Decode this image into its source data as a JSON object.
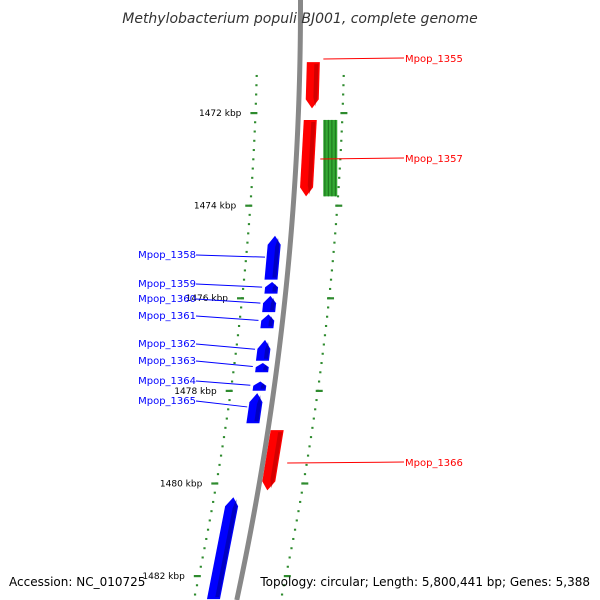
{
  "title": "Methylobacterium populi BJ001, complete genome",
  "accession": "Accession: NC_010725",
  "summary": "Topology: circular; Length: 5,800,441 bp; Genes: 5,388",
  "colors": {
    "backbone": "#888888",
    "dots": "#2e8b2e",
    "forward_gene": "#ff0000",
    "reverse_gene": "#0000ff",
    "other_feature": "#33aa33"
  },
  "kbp_ticks": [
    {
      "label": "1472 kbp",
      "kbp": 1472
    },
    {
      "label": "1474 kbp",
      "kbp": 1474
    },
    {
      "label": "1476 kbp",
      "kbp": 1476
    },
    {
      "label": "1478 kbp",
      "kbp": 1478
    },
    {
      "label": "1480 kbp",
      "kbp": 1480
    },
    {
      "label": "1482 kbp",
      "kbp": 1482
    }
  ],
  "genes": [
    {
      "id": "Mpop_1355",
      "strand": "+",
      "start_kbp": 1470.9,
      "end_kbp": 1471.9,
      "labeled": true
    },
    {
      "id": "Mpop_1357",
      "strand": "+",
      "start_kbp": 1472.15,
      "end_kbp": 1473.8,
      "labeled": true
    },
    {
      "id": "Mpop_1358",
      "strand": "-",
      "start_kbp": 1474.65,
      "end_kbp": 1475.6,
      "labeled": true
    },
    {
      "id": "Mpop_1359",
      "strand": "-",
      "start_kbp": 1475.65,
      "end_kbp": 1475.9,
      "labeled": true
    },
    {
      "id": "Mpop_1360",
      "strand": "-",
      "start_kbp": 1475.95,
      "end_kbp": 1476.3,
      "labeled": true
    },
    {
      "id": "Mpop_1361",
      "strand": "-",
      "start_kbp": 1476.35,
      "end_kbp": 1476.65,
      "labeled": true
    },
    {
      "id": "Mpop_1362",
      "strand": "-",
      "start_kbp": 1476.9,
      "end_kbp": 1477.35,
      "labeled": true
    },
    {
      "id": "Mpop_1363",
      "strand": "-",
      "start_kbp": 1477.4,
      "end_kbp": 1477.6,
      "labeled": true
    },
    {
      "id": "Mpop_1364",
      "strand": "-",
      "start_kbp": 1477.8,
      "end_kbp": 1478.0,
      "labeled": true
    },
    {
      "id": "Mpop_1365",
      "strand": "-",
      "start_kbp": 1478.05,
      "end_kbp": 1478.7,
      "labeled": true
    },
    {
      "id": "Mpop_1366",
      "strand": "+",
      "start_kbp": 1478.85,
      "end_kbp": 1480.15,
      "labeled": true
    },
    {
      "id": "",
      "strand": "-",
      "start_kbp": 1480.3,
      "end_kbp": 1482.5,
      "labeled": false
    }
  ],
  "other_features": [
    {
      "strand": "+",
      "start_kbp": 1472.15,
      "end_kbp": 1473.8
    }
  ]
}
